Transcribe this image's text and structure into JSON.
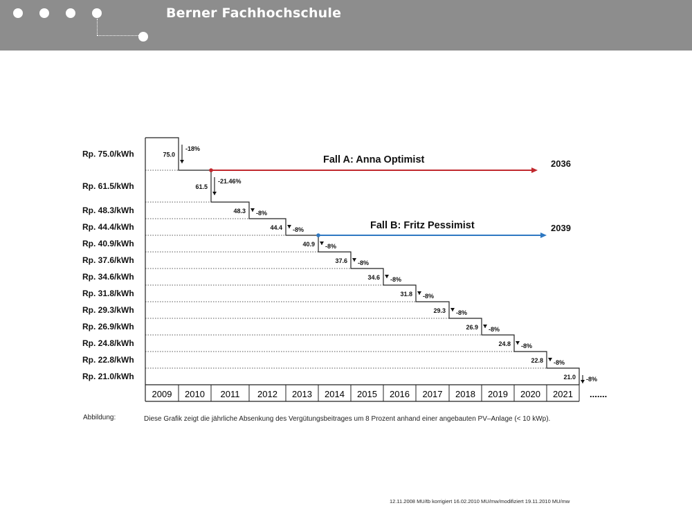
{
  "header": {
    "brand": "Berner Fachhochschule",
    "dot_count": 5
  },
  "chart_data": {
    "type": "bar",
    "title": "",
    "xlabel": "",
    "ylabel": "",
    "categories": [
      "2009",
      "2010",
      "2011",
      "2012",
      "2013",
      "2014",
      "2015",
      "2016",
      "2017",
      "2018",
      "2019",
      "2020",
      "2021"
    ],
    "values": [
      75.0,
      61.5,
      48.3,
      44.4,
      40.9,
      37.6,
      34.6,
      31.8,
      29.3,
      26.9,
      24.8,
      22.8,
      21.0
    ],
    "value_labels": [
      "75.0",
      "61.5",
      "48.3",
      "44.4",
      "40.9",
      "37.6",
      "34.6",
      "31.8",
      "29.3",
      "26.9",
      "24.8",
      "22.8",
      "21.0"
    ],
    "y_tick_labels": [
      "Rp. 75.0/kWh",
      "Rp. 61.5/kWh",
      "Rp. 48.3/kWh",
      "Rp. 44.4/kWh",
      "Rp. 40.9/kWh",
      "Rp. 37.6/kWh",
      "Rp. 34.6/kWh",
      "Rp. 31.8/kWh",
      "Rp. 29.3/kWh",
      "Rp. 26.9/kWh",
      "Rp. 24.8/kWh",
      "Rp. 22.8/kWh",
      "Rp. 21.0/kWh"
    ],
    "reductions": [
      "-18%",
      "-21.46%",
      "-8%",
      "-8%",
      "-8%",
      "-8%",
      "-8%",
      "-8%",
      "-8%",
      "-8%",
      "-8%",
      "-8%",
      "-8%"
    ],
    "continuation": ".......",
    "annotations": [
      {
        "label": "Fall A: Anna Optimist",
        "start_year": "2010",
        "end_label": "2036",
        "color": "#c0282d"
      },
      {
        "label": "Fall B: Fritz Pessimist",
        "start_year": "2013",
        "end_label": "2039",
        "color": "#2e78c2"
      }
    ],
    "grid": false,
    "legend": "none"
  },
  "caption": {
    "label": "Abbildung:",
    "text": "Diese Grafik zeigt die jährliche Absenkung des Vergütungsbeitrages um 8 Prozent anhand einer angebauten PV–Anlage (< 10 kWp)."
  },
  "footer": {
    "note": "12.11.2008 MU/tb korrigiert 16.02.2010 MU/mw/modifiziert 19.11.2010 MU/mw"
  }
}
